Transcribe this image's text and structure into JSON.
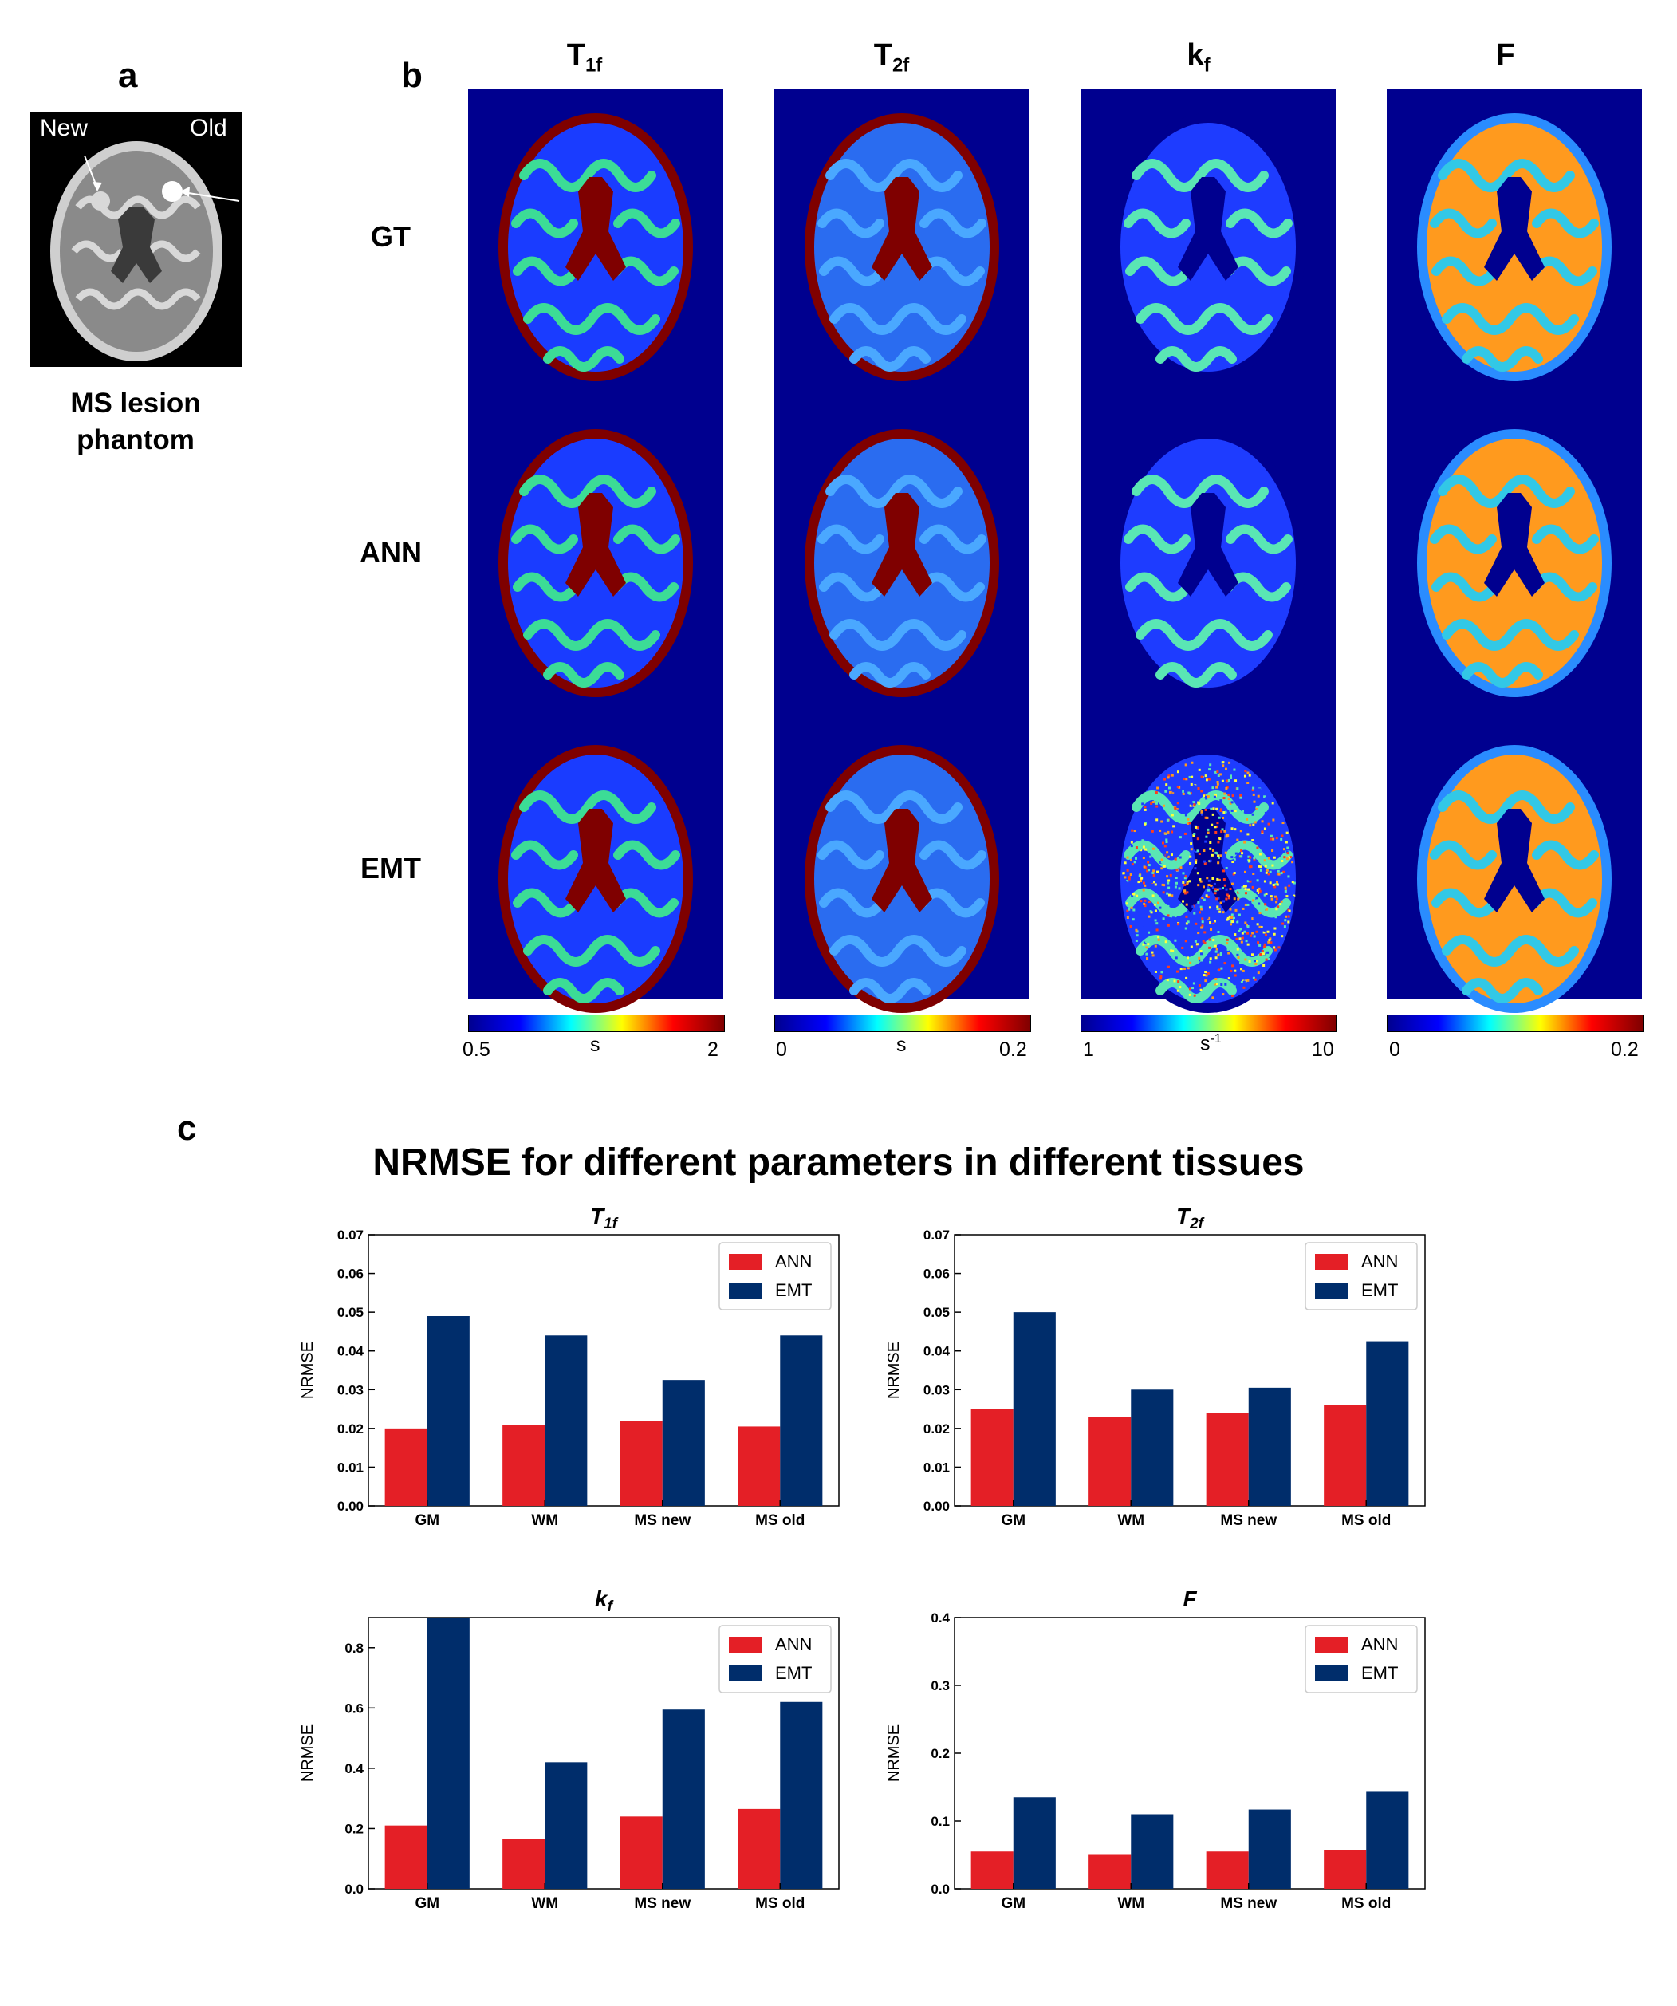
{
  "panels": {
    "a_letter": "a",
    "b_letter": "b",
    "c_letter": "c"
  },
  "phantom": {
    "label_new": "New",
    "label_old": "Old",
    "caption_line1": "MS lesion",
    "caption_line2": "phantom"
  },
  "maps": {
    "columns": [
      {
        "base": "T",
        "sub": "1f"
      },
      {
        "base": "T",
        "sub": "2f"
      },
      {
        "base": "k",
        "sub": "f"
      },
      {
        "base": "F",
        "sub": ""
      }
    ],
    "rows": [
      "GT",
      "ANN",
      "EMT"
    ],
    "colorbars": [
      {
        "min": "0.5",
        "unit": "s",
        "unit_sup": "",
        "max": "2"
      },
      {
        "min": "0",
        "unit": "s",
        "unit_sup": "",
        "max": "0.2"
      },
      {
        "min": "1",
        "unit": "s",
        "unit_sup": "-1",
        "max": "10"
      },
      {
        "min": "0",
        "unit": "",
        "unit_sup": "",
        "max": "0.2"
      }
    ],
    "colors": {
      "background": "#00008f",
      "csf": "#7f0000",
      "gm": "#1a3cff",
      "wm": "#3cdc96",
      "f_wm": "#ff9a1e"
    }
  },
  "main_title": "NRMSE for different parameters in different tissues",
  "chart_data": [
    {
      "type": "bar",
      "title": "T",
      "title_sub": "1f",
      "categories": [
        "GM",
        "WM",
        "MS new",
        "MS old"
      ],
      "series": [
        {
          "name": "ANN",
          "values": [
            0.02,
            0.021,
            0.022,
            0.0205
          ],
          "color": "#e41f26"
        },
        {
          "name": "EMT",
          "values": [
            0.049,
            0.044,
            0.0325,
            0.044
          ],
          "color": "#002d6b"
        }
      ],
      "ylabel": "NRMSE",
      "ylim": [
        0,
        0.07
      ],
      "yticks": [
        "0.00",
        "0.01",
        "0.02",
        "0.03",
        "0.04",
        "0.05",
        "0.06",
        "0.07"
      ],
      "legend": "top-right"
    },
    {
      "type": "bar",
      "title": "T",
      "title_sub": "2f",
      "categories": [
        "GM",
        "WM",
        "MS new",
        "MS old"
      ],
      "series": [
        {
          "name": "ANN",
          "values": [
            0.025,
            0.023,
            0.024,
            0.026
          ],
          "color": "#e41f26"
        },
        {
          "name": "EMT",
          "values": [
            0.05,
            0.03,
            0.0305,
            0.0425
          ],
          "color": "#002d6b"
        }
      ],
      "ylabel": "NRMSE",
      "ylim": [
        0,
        0.07
      ],
      "yticks": [
        "0.00",
        "0.01",
        "0.02",
        "0.03",
        "0.04",
        "0.05",
        "0.06",
        "0.07"
      ],
      "legend": "top-right"
    },
    {
      "type": "bar",
      "title": "k",
      "title_sub": "f",
      "categories": [
        "GM",
        "WM",
        "MS new",
        "MS old"
      ],
      "series": [
        {
          "name": "ANN",
          "values": [
            0.21,
            0.165,
            0.24,
            0.265
          ],
          "color": "#e41f26"
        },
        {
          "name": "EMT",
          "values": [
            0.9,
            0.42,
            0.595,
            0.62
          ],
          "color": "#002d6b"
        }
      ],
      "ylabel": "NRMSE",
      "ylim": [
        0,
        0.9
      ],
      "yticks": [
        "0.0",
        "0.2",
        "0.4",
        "0.6",
        "0.8"
      ],
      "ytick_values": [
        0,
        0.2,
        0.4,
        0.6,
        0.8
      ],
      "legend": "top-right"
    },
    {
      "type": "bar",
      "title": "F",
      "title_sub": "",
      "categories": [
        "GM",
        "WM",
        "MS new",
        "MS old"
      ],
      "series": [
        {
          "name": "ANN",
          "values": [
            0.055,
            0.05,
            0.055,
            0.057
          ],
          "color": "#e41f26"
        },
        {
          "name": "EMT",
          "values": [
            0.135,
            0.11,
            0.117,
            0.143
          ],
          "color": "#002d6b"
        }
      ],
      "ylabel": "NRMSE",
      "ylim": [
        0,
        0.4
      ],
      "yticks": [
        "0.0",
        "0.1",
        "0.2",
        "0.3",
        "0.4"
      ],
      "ytick_values": [
        0,
        0.1,
        0.2,
        0.3,
        0.4
      ],
      "legend": "top-right"
    }
  ]
}
